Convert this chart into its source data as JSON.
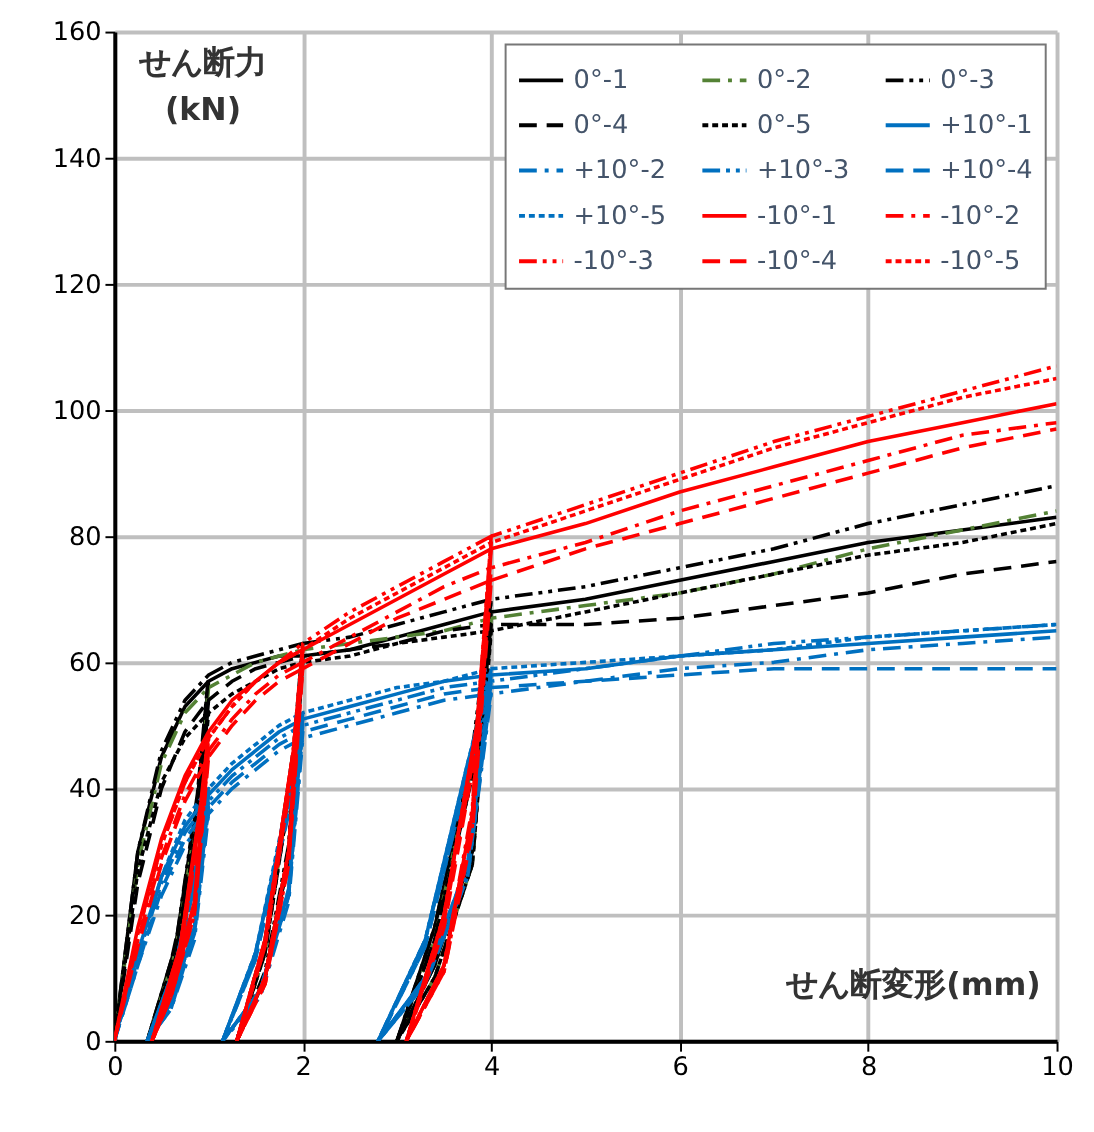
{
  "chart_data": {
    "type": "line",
    "xlabel": "せん断変形(mm)",
    "ylabel": "せん断力\n(kN)",
    "xlim": [
      0,
      10
    ],
    "xticks": [
      0,
      2,
      4,
      6,
      8,
      10
    ],
    "ylim": [
      0,
      160
    ],
    "yticks": [
      0,
      20,
      40,
      60,
      80,
      100,
      120,
      140,
      160
    ],
    "grid": true,
    "legend": "top right",
    "marker": "none",
    "series": [
      {
        "name": "0°-1",
        "color": "#000000",
        "line_style": "solid",
        "x": [
          0,
          0.25,
          0.5,
          0.75,
          1,
          0.8,
          0.55,
          0.35,
          0.65,
          0.9,
          1,
          1.25,
          1.5,
          1.75,
          2,
          1.85,
          1.6,
          1.3,
          1.6,
          1.9,
          2,
          2.5,
          3,
          3.5,
          4,
          3.8,
          3.4,
          3.0,
          3.4,
          3.8,
          4,
          5,
          6,
          7,
          8,
          9,
          10
        ],
        "values": [
          0,
          30,
          45,
          53,
          57,
          25,
          8,
          0,
          15,
          40,
          57,
          59,
          60,
          61,
          61,
          30,
          10,
          0,
          15,
          45,
          61,
          62,
          64,
          66,
          68,
          30,
          12,
          0,
          18,
          45,
          68,
          70,
          73,
          76,
          79,
          81,
          83
        ]
      },
      {
        "name": "0°-2",
        "color": "#548235",
        "line_style": "dashdot",
        "x": [
          0,
          0.25,
          0.5,
          0.75,
          1,
          0.8,
          0.55,
          0.35,
          0.65,
          0.9,
          1,
          1.25,
          1.5,
          1.75,
          2,
          1.85,
          1.6,
          1.3,
          1.6,
          1.9,
          2,
          2.5,
          3,
          3.5,
          4,
          3.8,
          3.4,
          3.0,
          3.4,
          3.8,
          4,
          5,
          6,
          7,
          8,
          9,
          10
        ],
        "values": [
          0,
          28,
          44,
          52,
          56,
          24,
          8,
          0,
          14,
          38,
          56,
          58,
          60,
          61,
          62,
          30,
          10,
          0,
          14,
          44,
          62,
          63,
          64,
          65,
          67,
          28,
          10,
          0,
          16,
          44,
          67,
          69,
          71,
          74,
          78,
          81,
          84
        ]
      },
      {
        "name": "0°-3",
        "color": "#000000",
        "line_style": "dashdotdot",
        "x": [
          0,
          0.25,
          0.5,
          0.75,
          1,
          0.8,
          0.55,
          0.35,
          0.65,
          0.9,
          1,
          1.25,
          1.5,
          1.75,
          2,
          1.85,
          1.6,
          1.3,
          1.6,
          1.9,
          2,
          2.5,
          3,
          3.5,
          4,
          3.8,
          3.4,
          3.0,
          3.4,
          3.8,
          4,
          5,
          6,
          7,
          8,
          9,
          10
        ],
        "values": [
          0,
          30,
          46,
          54,
          58,
          26,
          9,
          0,
          15,
          41,
          58,
          60,
          61,
          62,
          63,
          31,
          11,
          0,
          16,
          46,
          63,
          64,
          66,
          68,
          70,
          31,
          12,
          0,
          18,
          46,
          70,
          72,
          75,
          78,
          82,
          85,
          88
        ]
      },
      {
        "name": "0°-4",
        "color": "#000000",
        "line_style": "dashed",
        "x": [
          0,
          0.25,
          0.5,
          0.75,
          1,
          0.8,
          0.55,
          0.35,
          0.65,
          0.9,
          1,
          1.25,
          1.5,
          1.75,
          2,
          1.85,
          1.6,
          1.3,
          1.6,
          1.9,
          2,
          2.5,
          3,
          3.5,
          4,
          3.8,
          3.4,
          3.0,
          3.4,
          3.8,
          4,
          5,
          6,
          7,
          8,
          9,
          10
        ],
        "values": [
          0,
          25,
          40,
          49,
          54,
          22,
          7,
          0,
          13,
          36,
          54,
          57,
          59,
          60,
          61,
          29,
          10,
          0,
          14,
          43,
          61,
          62,
          63,
          65,
          66,
          28,
          10,
          0,
          16,
          42,
          66,
          66,
          67,
          69,
          71,
          74,
          76
        ]
      },
      {
        "name": "0°-5",
        "color": "#000000",
        "line_style": "dotted",
        "x": [
          0,
          0.25,
          0.5,
          0.75,
          1,
          0.8,
          0.55,
          0.35,
          0.65,
          0.9,
          1,
          1.25,
          1.5,
          1.75,
          2,
          1.85,
          1.6,
          1.3,
          1.6,
          1.9,
          2,
          2.5,
          3,
          3.5,
          4,
          3.8,
          3.4,
          3.0,
          3.4,
          3.8,
          4,
          5,
          6,
          7,
          8,
          9,
          10
        ],
        "values": [
          0,
          27,
          41,
          48,
          52,
          22,
          7,
          0,
          13,
          36,
          52,
          55,
          57,
          59,
          60,
          29,
          10,
          0,
          14,
          43,
          60,
          61,
          63,
          64,
          65,
          28,
          10,
          0,
          16,
          42,
          65,
          68,
          71,
          74,
          77,
          79,
          82
        ]
      },
      {
        "name": "+10°-1",
        "color": "#0070c0",
        "line_style": "solid",
        "x": [
          0,
          0.25,
          0.5,
          0.75,
          1,
          0.85,
          0.6,
          0.35,
          0.65,
          0.9,
          1,
          1.25,
          1.5,
          1.75,
          2,
          1.85,
          1.55,
          1.15,
          1.5,
          1.85,
          2,
          2.5,
          3,
          3.5,
          4,
          3.75,
          3.3,
          2.8,
          3.3,
          3.75,
          4,
          5,
          6,
          7,
          8,
          9,
          10
        ],
        "values": [
          0,
          14,
          26,
          34,
          39,
          18,
          6,
          0,
          12,
          30,
          39,
          43,
          46,
          49,
          51,
          24,
          8,
          0,
          14,
          38,
          51,
          53,
          55,
          57,
          58,
          28,
          10,
          0,
          16,
          44,
          58,
          59,
          61,
          62,
          63,
          64,
          65
        ]
      },
      {
        "name": "+10°-2",
        "color": "#0070c0",
        "line_style": "dashdot",
        "x": [
          0,
          0.25,
          0.5,
          0.75,
          1,
          0.85,
          0.6,
          0.35,
          0.65,
          0.9,
          1,
          1.25,
          1.5,
          1.75,
          2,
          1.85,
          1.55,
          1.15,
          1.5,
          1.85,
          2,
          2.5,
          3,
          3.5,
          4,
          3.75,
          3.3,
          2.8,
          3.3,
          3.75,
          4,
          5,
          6,
          7,
          8,
          9,
          10
        ],
        "values": [
          0,
          12,
          23,
          31,
          36,
          16,
          5,
          0,
          11,
          28,
          36,
          40,
          43,
          46,
          48,
          22,
          7,
          0,
          13,
          36,
          48,
          50,
          52,
          54,
          55,
          26,
          9,
          0,
          15,
          42,
          55,
          57,
          59,
          60,
          62,
          63,
          64
        ]
      },
      {
        "name": "+10°-3",
        "color": "#0070c0",
        "line_style": "dashdotdot",
        "x": [
          0,
          0.25,
          0.5,
          0.75,
          1,
          0.85,
          0.6,
          0.35,
          0.65,
          0.9,
          1,
          1.25,
          1.5,
          1.75,
          2,
          1.85,
          1.55,
          1.15,
          1.5,
          1.85,
          2,
          2.5,
          3,
          3.5,
          4,
          3.75,
          3.3,
          2.8,
          3.3,
          3.75,
          4,
          5,
          6,
          7,
          8,
          9,
          10
        ],
        "values": [
          0,
          13,
          25,
          33,
          38,
          17,
          6,
          0,
          12,
          29,
          38,
          42,
          45,
          48,
          50,
          23,
          8,
          0,
          14,
          37,
          50,
          52,
          54,
          56,
          57,
          27,
          10,
          0,
          16,
          43,
          57,
          59,
          61,
          63,
          64,
          65,
          66
        ]
      },
      {
        "name": "+10°-4",
        "color": "#0070c0",
        "line_style": "dashed",
        "x": [
          0,
          0.25,
          0.5,
          0.75,
          1,
          0.85,
          0.6,
          0.35,
          0.65,
          0.9,
          1,
          1.25,
          1.5,
          1.75,
          2,
          1.85,
          1.55,
          1.15,
          1.5,
          1.85,
          2,
          2.5,
          3,
          3.5,
          4,
          3.75,
          3.3,
          2.8,
          3.3,
          3.75,
          4,
          5,
          6,
          7,
          8,
          9,
          10
        ],
        "values": [
          0,
          12,
          24,
          32,
          37,
          17,
          5,
          0,
          11,
          28,
          37,
          41,
          44,
          47,
          49,
          23,
          8,
          0,
          13,
          37,
          49,
          51,
          53,
          55,
          56,
          26,
          9,
          0,
          15,
          42,
          56,
          57,
          58,
          59,
          59,
          59,
          59
        ]
      },
      {
        "name": "+10°-5",
        "color": "#0070c0",
        "line_style": "dotted",
        "x": [
          0,
          0.25,
          0.5,
          0.75,
          1,
          0.85,
          0.6,
          0.35,
          0.65,
          0.9,
          1,
          1.25,
          1.5,
          1.75,
          2,
          1.85,
          1.55,
          1.15,
          1.5,
          1.85,
          2,
          2.5,
          3,
          3.5,
          4,
          3.75,
          3.3,
          2.8,
          3.3,
          3.75,
          4,
          5,
          6,
          7,
          8,
          9,
          10
        ],
        "values": [
          0,
          13,
          26,
          35,
          40,
          18,
          6,
          0,
          12,
          30,
          40,
          44,
          47,
          50,
          52,
          24,
          8,
          0,
          14,
          39,
          52,
          54,
          56,
          57,
          59,
          28,
          10,
          0,
          16,
          44,
          59,
          60,
          61,
          62,
          64,
          65,
          66
        ]
      },
      {
        "name": "-10°-1",
        "color": "#ff0000",
        "line_style": "solid",
        "x": [
          0,
          0.25,
          0.5,
          0.75,
          1,
          0.85,
          0.6,
          0.4,
          0.7,
          0.92,
          1,
          1.25,
          1.5,
          1.75,
          2,
          1.85,
          1.6,
          1.3,
          1.6,
          1.9,
          2,
          2.5,
          3,
          3.5,
          4,
          3.8,
          3.5,
          3.1,
          3.5,
          3.85,
          4,
          5,
          6,
          7,
          8,
          9,
          10
        ],
        "values": [
          0,
          18,
          32,
          42,
          49,
          22,
          8,
          0,
          15,
          38,
          49,
          54,
          57,
          60,
          62,
          30,
          10,
          0,
          16,
          46,
          62,
          66,
          70,
          74,
          78,
          36,
          12,
          0,
          20,
          50,
          78,
          82,
          87,
          91,
          95,
          98,
          101
        ]
      },
      {
        "name": "-10°-2",
        "color": "#ff0000",
        "line_style": "dashdot",
        "x": [
          0,
          0.25,
          0.5,
          0.75,
          1,
          0.85,
          0.6,
          0.4,
          0.7,
          0.92,
          1,
          1.25,
          1.5,
          1.75,
          2,
          1.85,
          1.6,
          1.3,
          1.6,
          1.9,
          2,
          2.5,
          3,
          3.5,
          4,
          3.8,
          3.5,
          3.1,
          3.5,
          3.85,
          4,
          5,
          6,
          7,
          8,
          9,
          10
        ],
        "values": [
          0,
          16,
          29,
          39,
          46,
          20,
          7,
          0,
          14,
          36,
          46,
          51,
          55,
          58,
          60,
          28,
          9,
          0,
          15,
          44,
          60,
          64,
          68,
          72,
          75,
          34,
          11,
          0,
          19,
          48,
          75,
          79,
          84,
          88,
          92,
          96,
          98
        ]
      },
      {
        "name": "-10°-3",
        "color": "#ff0000",
        "line_style": "dashdotdot",
        "x": [
          0,
          0.25,
          0.5,
          0.75,
          1,
          0.85,
          0.6,
          0.4,
          0.7,
          0.92,
          1,
          1.25,
          1.5,
          1.75,
          2,
          1.85,
          1.6,
          1.3,
          1.6,
          1.9,
          2,
          2.5,
          3,
          3.5,
          4,
          3.8,
          3.5,
          3.1,
          3.5,
          3.85,
          4,
          5,
          6,
          7,
          8,
          9,
          10
        ],
        "values": [
          0,
          17,
          31,
          41,
          48,
          21,
          7,
          0,
          15,
          37,
          48,
          53,
          57,
          60,
          63,
          30,
          10,
          0,
          16,
          46,
          63,
          68,
          72,
          76,
          80,
          37,
          12,
          0,
          20,
          50,
          80,
          85,
          90,
          95,
          99,
          103,
          107
        ]
      },
      {
        "name": "-10°-4",
        "color": "#ff0000",
        "line_style": "dashed",
        "x": [
          0,
          0.25,
          0.5,
          0.75,
          1,
          0.85,
          0.6,
          0.4,
          0.7,
          0.92,
          1,
          1.25,
          1.5,
          1.75,
          2,
          1.85,
          1.6,
          1.3,
          1.6,
          1.9,
          2,
          2.5,
          3,
          3.5,
          4,
          3.8,
          3.5,
          3.1,
          3.5,
          3.85,
          4,
          5,
          6,
          7,
          8,
          9,
          10
        ],
        "values": [
          0,
          15,
          28,
          38,
          45,
          20,
          7,
          0,
          14,
          35,
          45,
          50,
          54,
          57,
          59,
          28,
          9,
          0,
          15,
          44,
          59,
          63,
          67,
          70,
          73,
          33,
          11,
          0,
          18,
          47,
          73,
          78,
          82,
          86,
          90,
          94,
          97
        ]
      },
      {
        "name": "-10°-5",
        "color": "#ff0000",
        "line_style": "dotted",
        "x": [
          0,
          0.25,
          0.5,
          0.75,
          1,
          0.85,
          0.6,
          0.4,
          0.7,
          0.92,
          1,
          1.25,
          1.5,
          1.75,
          2,
          1.85,
          1.6,
          1.3,
          1.6,
          1.9,
          2,
          2.5,
          3,
          3.5,
          4,
          3.8,
          3.5,
          3.1,
          3.5,
          3.85,
          4,
          5,
          6,
          7,
          8,
          9,
          10
        ],
        "values": [
          0,
          17,
          31,
          41,
          48,
          21,
          7,
          0,
          15,
          37,
          48,
          53,
          57,
          60,
          62,
          30,
          10,
          0,
          16,
          46,
          62,
          67,
          71,
          75,
          79,
          36,
          12,
          0,
          20,
          50,
          79,
          84,
          89,
          94,
          98,
          102,
          105
        ]
      }
    ]
  }
}
